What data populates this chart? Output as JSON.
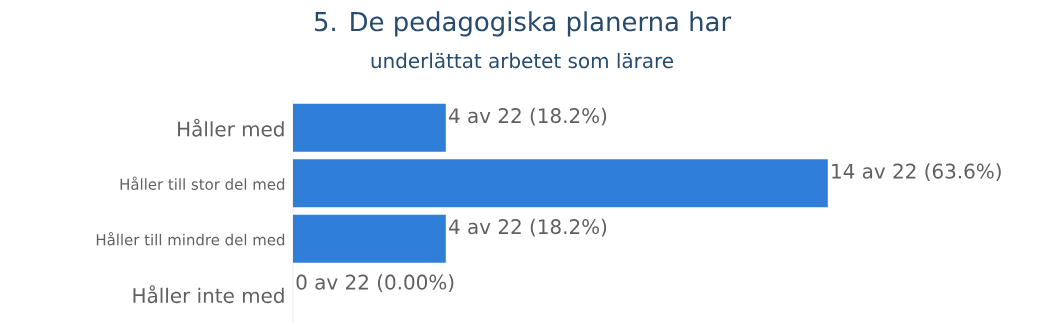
{
  "chart_data": {
    "type": "bar",
    "orientation": "horizontal",
    "title": "5. De pedagogiska planerna har",
    "subtitle": "underlättat arbetet som lärare",
    "categories": [
      "Håller med",
      "Håller till stor del med",
      "Håller till mindre del med",
      "Håller inte med"
    ],
    "values": [
      4,
      14,
      4,
      0
    ],
    "value_labels": [
      "4 av 22 (18.2%)",
      "14 av 22 (63.6%)",
      "4 av 22 (18.2%)",
      "0 av 22 (0.00%)"
    ],
    "color": "#2f7ed8"
  }
}
